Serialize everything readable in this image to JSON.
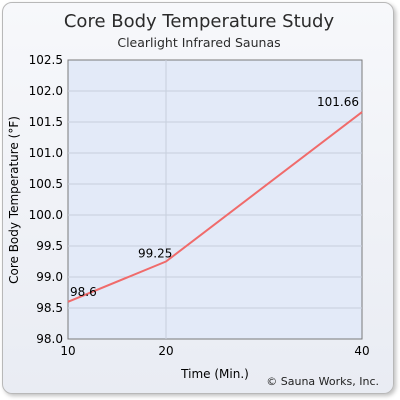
{
  "chart_data": {
    "type": "line",
    "title": "Core Body Temperature Study",
    "subtitle": "Clearlight Infrared Saunas",
    "xlabel": "Time (Min.)",
    "ylabel": "Core Body Temperature (°F)",
    "x": [
      10,
      20,
      40
    ],
    "x_ticks": [
      10,
      20,
      40
    ],
    "y_ticks": [
      "98.0",
      "98.5",
      "99.0",
      "99.5",
      "100.0",
      "100.5",
      "101.0",
      "101.5",
      "102.0",
      "102.5"
    ],
    "xlim": [
      10,
      40
    ],
    "ylim": [
      98.0,
      102.5
    ],
    "series": [
      {
        "values": [
          98.6,
          99.25,
          101.66
        ],
        "labels": [
          "98.6",
          "99.25",
          "101.66"
        ],
        "color": "#f06b6b"
      }
    ],
    "grid": true,
    "footer": "© Sauna Works, Inc."
  }
}
